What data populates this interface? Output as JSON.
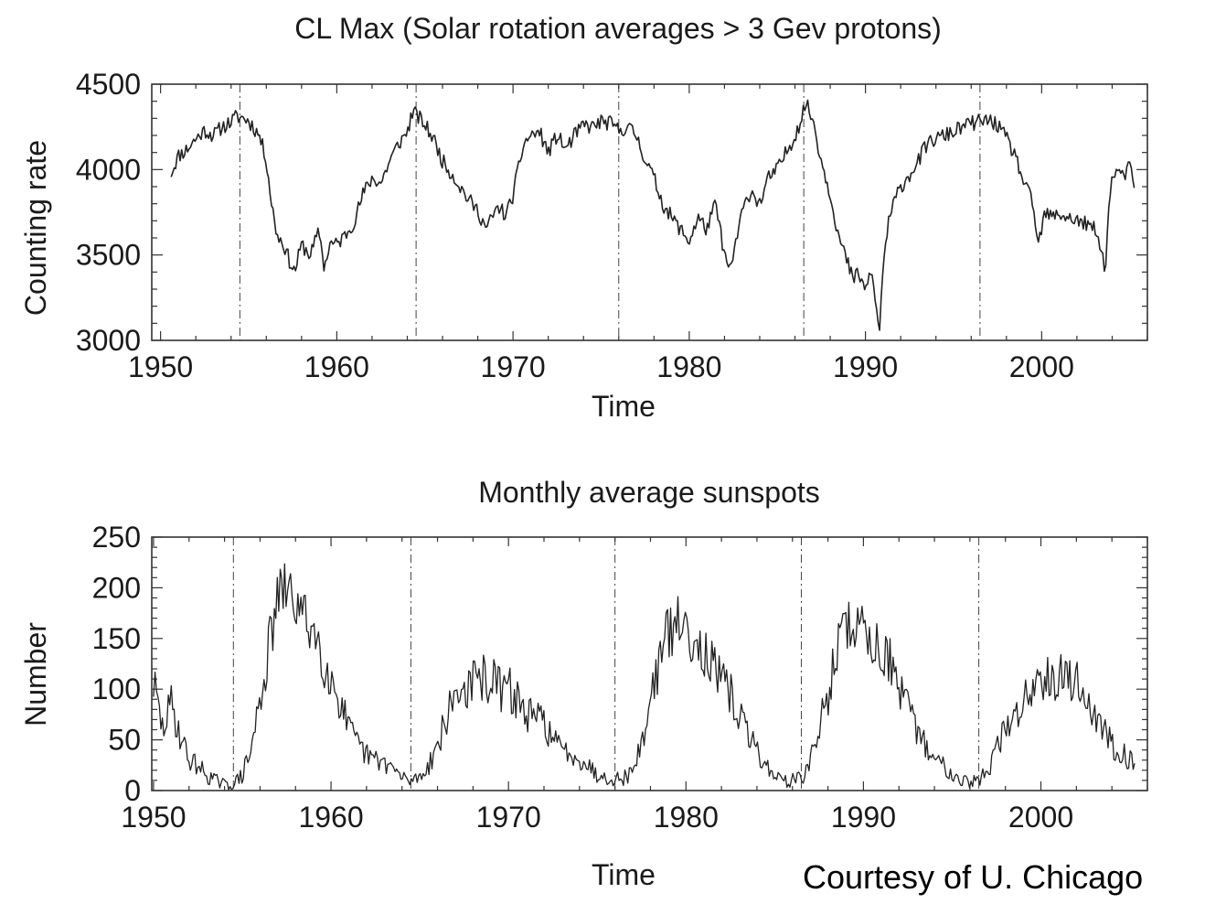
{
  "credit": "Courtesy of U. Chicago",
  "colors": {
    "line": "#222222",
    "axis": "#333333"
  },
  "chart_data": [
    {
      "type": "line",
      "title": "CL Max (Solar rotation averages > 3 Gev protons)",
      "xlabel": "Time",
      "ylabel": "Counting rate",
      "xlim": [
        1949.5,
        2006.0
      ],
      "ylim": [
        3000,
        4500
      ],
      "xticks": [
        1950,
        1960,
        1970,
        1980,
        1990,
        2000
      ],
      "xtick_labels": [
        "1950",
        "1960",
        "1970",
        "1980",
        "1990",
        "2000"
      ],
      "yticks": [
        3000,
        3500,
        4000,
        4500
      ],
      "ytick_labels": [
        "3000",
        "3500",
        "4000",
        "4500"
      ],
      "solar_minimum_markers": [
        1954.5,
        1964.5,
        1976.0,
        1986.5,
        1996.5
      ],
      "grid": false,
      "series": [
        {
          "x": [
            1950.6,
            1951.0,
            1951.5,
            1952.0,
            1952.5,
            1953.0,
            1953.5,
            1954.0,
            1954.3,
            1954.8,
            1955.2,
            1955.6,
            1956.0,
            1956.3,
            1956.6,
            1957.0,
            1957.3,
            1957.6,
            1958.0,
            1958.5,
            1959.0,
            1959.3,
            1959.6,
            1960.0,
            1960.5,
            1961.0,
            1961.5,
            1962.0,
            1962.5,
            1963.0,
            1963.5,
            1964.0,
            1964.3,
            1964.7,
            1965.0,
            1965.5,
            1966.0,
            1966.5,
            1967.0,
            1967.5,
            1968.0,
            1968.5,
            1968.8,
            1969.2,
            1969.6,
            1970.0,
            1970.3,
            1970.6,
            1971.0,
            1971.5,
            1972.0,
            1972.5,
            1973.0,
            1973.5,
            1974.0,
            1974.5,
            1975.0,
            1975.5,
            1976.0,
            1976.5,
            1977.0,
            1977.5,
            1978.0,
            1978.5,
            1979.0,
            1979.5,
            1980.0,
            1980.5,
            1981.0,
            1981.5,
            1982.0,
            1982.3,
            1982.7,
            1983.0,
            1983.5,
            1984.0,
            1984.5,
            1985.0,
            1985.5,
            1986.0,
            1986.3,
            1986.6,
            1987.0,
            1987.5,
            1988.0,
            1988.5,
            1989.0,
            1989.3,
            1989.6,
            1990.0,
            1990.3,
            1990.6,
            1990.8,
            1991.0,
            1991.3,
            1991.6,
            1992.0,
            1992.5,
            1993.0,
            1993.5,
            1994.0,
            1994.5,
            1995.0,
            1995.5,
            1996.0,
            1996.5,
            1997.0,
            1997.5,
            1998.0,
            1998.5,
            1999.0,
            1999.5,
            1999.8,
            2000.2,
            2000.5,
            2001.0,
            2001.5,
            2002.0,
            2002.5,
            2003.0,
            2003.3,
            2003.6,
            2003.9,
            2004.2,
            2004.6,
            2005.0,
            2005.3
          ],
          "y": [
            3980,
            4080,
            4120,
            4180,
            4230,
            4200,
            4250,
            4280,
            4310,
            4300,
            4260,
            4200,
            4060,
            3800,
            3620,
            3560,
            3470,
            3400,
            3560,
            3500,
            3640,
            3420,
            3570,
            3560,
            3620,
            3700,
            3860,
            3950,
            3920,
            4050,
            4150,
            4220,
            4340,
            4300,
            4260,
            4180,
            4050,
            3980,
            3900,
            3820,
            3760,
            3650,
            3720,
            3780,
            3730,
            3850,
            4000,
            4150,
            4200,
            4220,
            4100,
            4200,
            4120,
            4200,
            4260,
            4250,
            4280,
            4270,
            4230,
            4250,
            4200,
            4060,
            3950,
            3800,
            3720,
            3650,
            3580,
            3720,
            3650,
            3800,
            3500,
            3400,
            3600,
            3750,
            3880,
            3800,
            3950,
            4000,
            4100,
            4200,
            4280,
            4390,
            4300,
            4050,
            3860,
            3600,
            3450,
            3350,
            3400,
            3280,
            3420,
            3200,
            3050,
            3450,
            3680,
            3800,
            3900,
            3970,
            4050,
            4150,
            4180,
            4200,
            4220,
            4250,
            4270,
            4280,
            4290,
            4260,
            4180,
            4080,
            3920,
            3800,
            3550,
            3750,
            3720,
            3740,
            3720,
            3700,
            3680,
            3650,
            3560,
            3420,
            3900,
            4000,
            3950,
            4020,
            3850
          ]
        }
      ]
    },
    {
      "type": "line",
      "title": "Monthly average sunspots",
      "xlabel": "Time",
      "ylabel": "Number",
      "xlim": [
        1949.9,
        2006.0
      ],
      "ylim": [
        0,
        250
      ],
      "xticks": [
        1950,
        1960,
        1970,
        1980,
        1990,
        2000
      ],
      "xtick_labels": [
        "1950",
        "1960",
        "1970",
        "1980",
        "1990",
        "2000"
      ],
      "yticks": [
        0,
        50,
        100,
        150,
        200,
        250
      ],
      "ytick_labels": [
        "0",
        "50",
        "100",
        "150",
        "200",
        "250"
      ],
      "solar_minimum_markers": [
        1954.5,
        1964.5,
        1976.0,
        1986.5,
        1996.5
      ],
      "grid": false,
      "series": [
        {
          "x": [
            1950.0,
            1950.5,
            1951.0,
            1951.5,
            1952.0,
            1952.5,
            1953.0,
            1953.5,
            1954.0,
            1954.5,
            1955.0,
            1955.5,
            1956.0,
            1956.5,
            1957.0,
            1957.5,
            1958.0,
            1958.5,
            1959.0,
            1959.5,
            1960.0,
            1960.5,
            1961.0,
            1961.5,
            1962.0,
            1962.5,
            1963.0,
            1963.5,
            1964.0,
            1964.5,
            1965.0,
            1965.5,
            1966.0,
            1966.5,
            1967.0,
            1967.5,
            1968.0,
            1968.5,
            1969.0,
            1969.5,
            1970.0,
            1970.5,
            1971.0,
            1971.5,
            1972.0,
            1972.5,
            1973.0,
            1973.5,
            1974.0,
            1974.5,
            1975.0,
            1975.5,
            1976.0,
            1976.5,
            1977.0,
            1977.5,
            1978.0,
            1978.5,
            1979.0,
            1979.5,
            1980.0,
            1980.5,
            1981.0,
            1981.5,
            1982.0,
            1982.5,
            1983.0,
            1983.5,
            1984.0,
            1984.5,
            1985.0,
            1985.5,
            1986.0,
            1986.5,
            1987.0,
            1987.5,
            1988.0,
            1988.5,
            1989.0,
            1989.5,
            1990.0,
            1990.5,
            1991.0,
            1991.5,
            1992.0,
            1992.5,
            1993.0,
            1993.5,
            1994.0,
            1994.5,
            1995.0,
            1995.5,
            1996.0,
            1996.5,
            1997.0,
            1997.5,
            1998.0,
            1998.5,
            1999.0,
            1999.5,
            2000.0,
            2000.5,
            2001.0,
            2001.5,
            2002.0,
            2002.5,
            2003.0,
            2003.5,
            2004.0,
            2004.5,
            2005.0,
            2005.3
          ],
          "y": [
            105,
            60,
            85,
            55,
            30,
            25,
            15,
            10,
            5,
            6,
            15,
            40,
            90,
            140,
            190,
            200,
            185,
            170,
            160,
            135,
            110,
            90,
            60,
            45,
            35,
            30,
            28,
            22,
            12,
            10,
            14,
            25,
            45,
            70,
            95,
            100,
            105,
            110,
            110,
            100,
            100,
            90,
            75,
            70,
            70,
            50,
            40,
            38,
            32,
            25,
            15,
            14,
            12,
            12,
            20,
            45,
            90,
            130,
            155,
            165,
            160,
            150,
            140,
            120,
            105,
            95,
            75,
            55,
            40,
            25,
            15,
            10,
            10,
            12,
            28,
            60,
            95,
            140,
            160,
            165,
            160,
            145,
            140,
            130,
            95,
            80,
            60,
            45,
            30,
            25,
            18,
            12,
            8,
            10,
            20,
            40,
            60,
            70,
            90,
            100,
            115,
            120,
            110,
            115,
            105,
            95,
            75,
            60,
            45,
            40,
            30,
            28
          ]
        }
      ]
    }
  ]
}
